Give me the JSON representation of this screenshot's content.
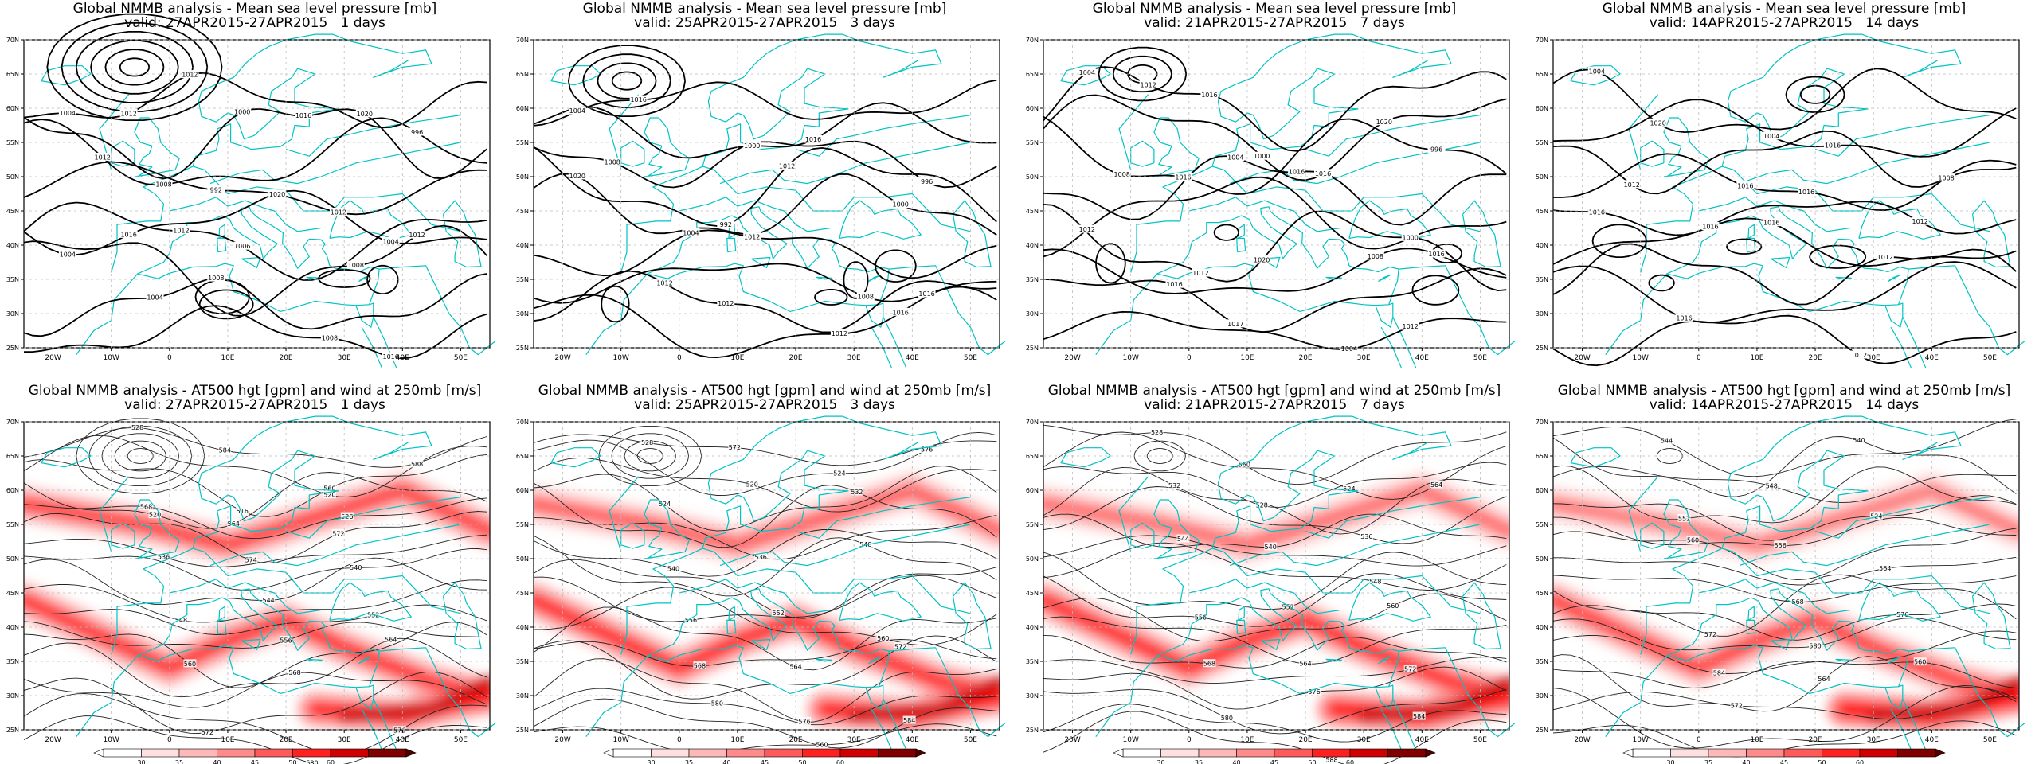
{
  "panels": [
    {
      "title": "Global NMMB analysis - Mean sea level pressure [mb]",
      "valid": "valid: 27APR2015-27APR2015   1 days",
      "type": "mslp",
      "seed": 1
    },
    {
      "title": "Global NMMB analysis - Mean sea level pressure [mb]",
      "valid": "valid: 25APR2015-27APR2015   3 days",
      "type": "mslp",
      "seed": 2
    },
    {
      "title": "Global NMMB analysis - Mean sea level pressure [mb]",
      "valid": "valid: 21APR2015-27APR2015   7 days",
      "type": "mslp",
      "seed": 3
    },
    {
      "title": "Global NMMB analysis - Mean sea level pressure [mb]",
      "valid": "valid: 14APR2015-27APR2015   14 days",
      "type": "mslp",
      "seed": 4
    },
    {
      "title": "Global NMMB analysis - AT500 hgt [gpm] and wind at 250mb [m/s]",
      "valid": "valid: 27APR2015-27APR2015   1 days",
      "type": "z500",
      "seed": 1
    },
    {
      "title": "Global NMMB analysis - AT500 hgt [gpm] and wind at 250mb [m/s]",
      "valid": "valid: 25APR2015-27APR2015   3 days",
      "type": "z500",
      "seed": 2
    },
    {
      "title": "Global NMMB analysis - AT500 hgt [gpm] and wind at 250mb [m/s]",
      "valid": "valid: 21APR2015-27APR2015   7 days",
      "type": "z500",
      "seed": 3
    },
    {
      "title": "Global NMMB analysis - AT500 hgt [gpm] and wind at 250mb [m/s]",
      "valid": "valid: 14APR2015-27APR2015   14 days",
      "type": "z500",
      "seed": 4
    }
  ],
  "x_ticks": [
    "20W",
    "10W",
    "0",
    "10E",
    "20E",
    "30E",
    "40E",
    "50E"
  ],
  "y_ticks": [
    "25N",
    "30N",
    "35N",
    "40N",
    "45N",
    "50N",
    "55N",
    "60N",
    "65N",
    "70N"
  ],
  "colorbar_ticks": [
    "30",
    "35",
    "40",
    "45",
    "50",
    "60"
  ],
  "mslp_labels": {
    "1": [
      "1004",
      "1000",
      "996",
      "992",
      "1004",
      "1012",
      "1008",
      "1004",
      "1008",
      "1012",
      "1016",
      "1012",
      "1020",
      "1004",
      "1006",
      "1012",
      "1008",
      "1016",
      "1012",
      "1020",
      "1008",
      "1012",
      "1016"
    ],
    "2": [
      "1004",
      "1000",
      "996",
      "992",
      "1000",
      "1004",
      "1008",
      "1012",
      "1012",
      "1016",
      "1016",
      "1008",
      "1012",
      "1020",
      "1012",
      "1016",
      "1012",
      "1016"
    ],
    "3": [
      "1004",
      "1000",
      "996",
      "1004",
      "1000",
      "1012",
      "1008",
      "1016",
      "1004",
      "1012",
      "1016",
      "1008",
      "1016",
      "1012",
      "1020",
      "1016",
      "1017",
      "1012",
      "1016",
      "1020",
      "1016"
    ],
    "4": [
      "1004",
      "1004",
      "1008",
      "1016",
      "1012",
      "1016",
      "1012",
      "1016",
      "1012",
      "1020",
      "1016",
      "1012",
      "1016",
      "1016",
      "1016"
    ]
  },
  "z500_labels": {
    "1": [
      "528",
      "520",
      "516",
      "520",
      "526",
      "574",
      "536",
      "540",
      "544",
      "548",
      "552",
      "556",
      "560",
      "564",
      "568",
      "572",
      "576",
      "580",
      "584",
      "588",
      "560",
      "564",
      "568",
      "572"
    ],
    "2": [
      "528",
      "524",
      "520",
      "524",
      "532",
      "536",
      "540",
      "548",
      "552",
      "556",
      "560",
      "564",
      "568",
      "572",
      "576",
      "580",
      "584",
      "560",
      "572",
      "576"
    ],
    "3": [
      "528",
      "524",
      "528",
      "532",
      "536",
      "540",
      "544",
      "548",
      "552",
      "556",
      "560",
      "564",
      "568",
      "572",
      "576",
      "580",
      "584",
      "588",
      "560",
      "564"
    ],
    "4": [
      "544",
      "540",
      "548",
      "552",
      "524",
      "556",
      "560",
      "564",
      "568",
      "572",
      "576",
      "580",
      "584",
      "560",
      "564",
      "572"
    ]
  },
  "colors": {
    "coast": "#00c3c3",
    "contour": "#000000",
    "jet": "#ff0000"
  }
}
